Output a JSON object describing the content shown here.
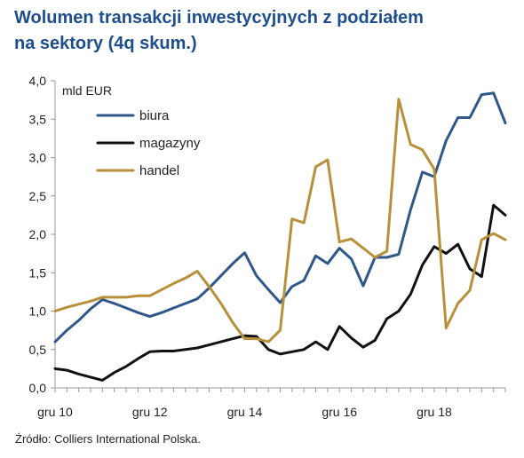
{
  "title_line1": "Wolumen transakcji inwestycyjnych z podziałem",
  "title_line2": "na sektory (4q skum.)",
  "source": "Źródło: Colliers International Polska.",
  "colors": {
    "title": "#1f4e8c",
    "axis": "#9a9a9a",
    "text": "#222222"
  },
  "chart_data": {
    "type": "line",
    "unit_label": "mld  EUR",
    "ylim": [
      0,
      4
    ],
    "y_ticks": [
      "0,0",
      "0,5",
      "1,0",
      "1,5",
      "2,0",
      "2,5",
      "3,0",
      "3,5",
      "4,0"
    ],
    "y_tick_values": [
      0,
      0.5,
      1,
      1.5,
      2,
      2.5,
      3,
      3.5,
      4
    ],
    "x_tick_labels": [
      "gru 10",
      "gru 12",
      "gru 14",
      "gru 16",
      "gru 18"
    ],
    "x_tick_index": [
      0,
      8,
      16,
      24,
      32
    ],
    "grid": false,
    "legend_position": "top-left",
    "series": [
      {
        "name": "biura",
        "color": "#2f5788",
        "values": [
          0.6,
          0.75,
          0.88,
          1.03,
          1.15,
          1.1,
          1.04,
          0.98,
          0.93,
          0.98,
          1.04,
          1.1,
          1.16,
          1.3,
          1.46,
          1.62,
          1.76,
          1.46,
          1.28,
          1.11,
          1.32,
          1.4,
          1.72,
          1.62,
          1.82,
          1.68,
          1.33,
          1.7,
          1.7,
          1.74,
          2.32,
          2.81,
          2.75,
          3.22,
          3.52,
          3.52,
          3.82,
          3.84,
          3.45
        ]
      },
      {
        "name": "magazyny",
        "color": "#111111",
        "values": [
          0.25,
          0.23,
          0.18,
          0.14,
          0.1,
          0.2,
          0.28,
          0.38,
          0.47,
          0.48,
          0.48,
          0.5,
          0.52,
          0.56,
          0.6,
          0.64,
          0.68,
          0.67,
          0.5,
          0.44,
          0.47,
          0.5,
          0.6,
          0.5,
          0.8,
          0.65,
          0.53,
          0.62,
          0.9,
          1.0,
          1.22,
          1.6,
          1.84,
          1.75,
          1.87,
          1.55,
          1.45,
          2.38,
          2.25
        ]
      },
      {
        "name": "handel",
        "color": "#b8903a",
        "values": [
          1.0,
          1.05,
          1.09,
          1.13,
          1.18,
          1.18,
          1.18,
          1.2,
          1.2,
          1.28,
          1.36,
          1.43,
          1.52,
          1.32,
          1.1,
          0.85,
          0.64,
          0.64,
          0.6,
          0.75,
          2.2,
          2.15,
          2.88,
          2.97,
          1.9,
          1.94,
          1.82,
          1.7,
          1.78,
          3.76,
          3.17,
          3.1,
          2.85,
          0.78,
          1.1,
          1.27,
          1.93,
          2.01,
          1.93
        ]
      }
    ]
  }
}
